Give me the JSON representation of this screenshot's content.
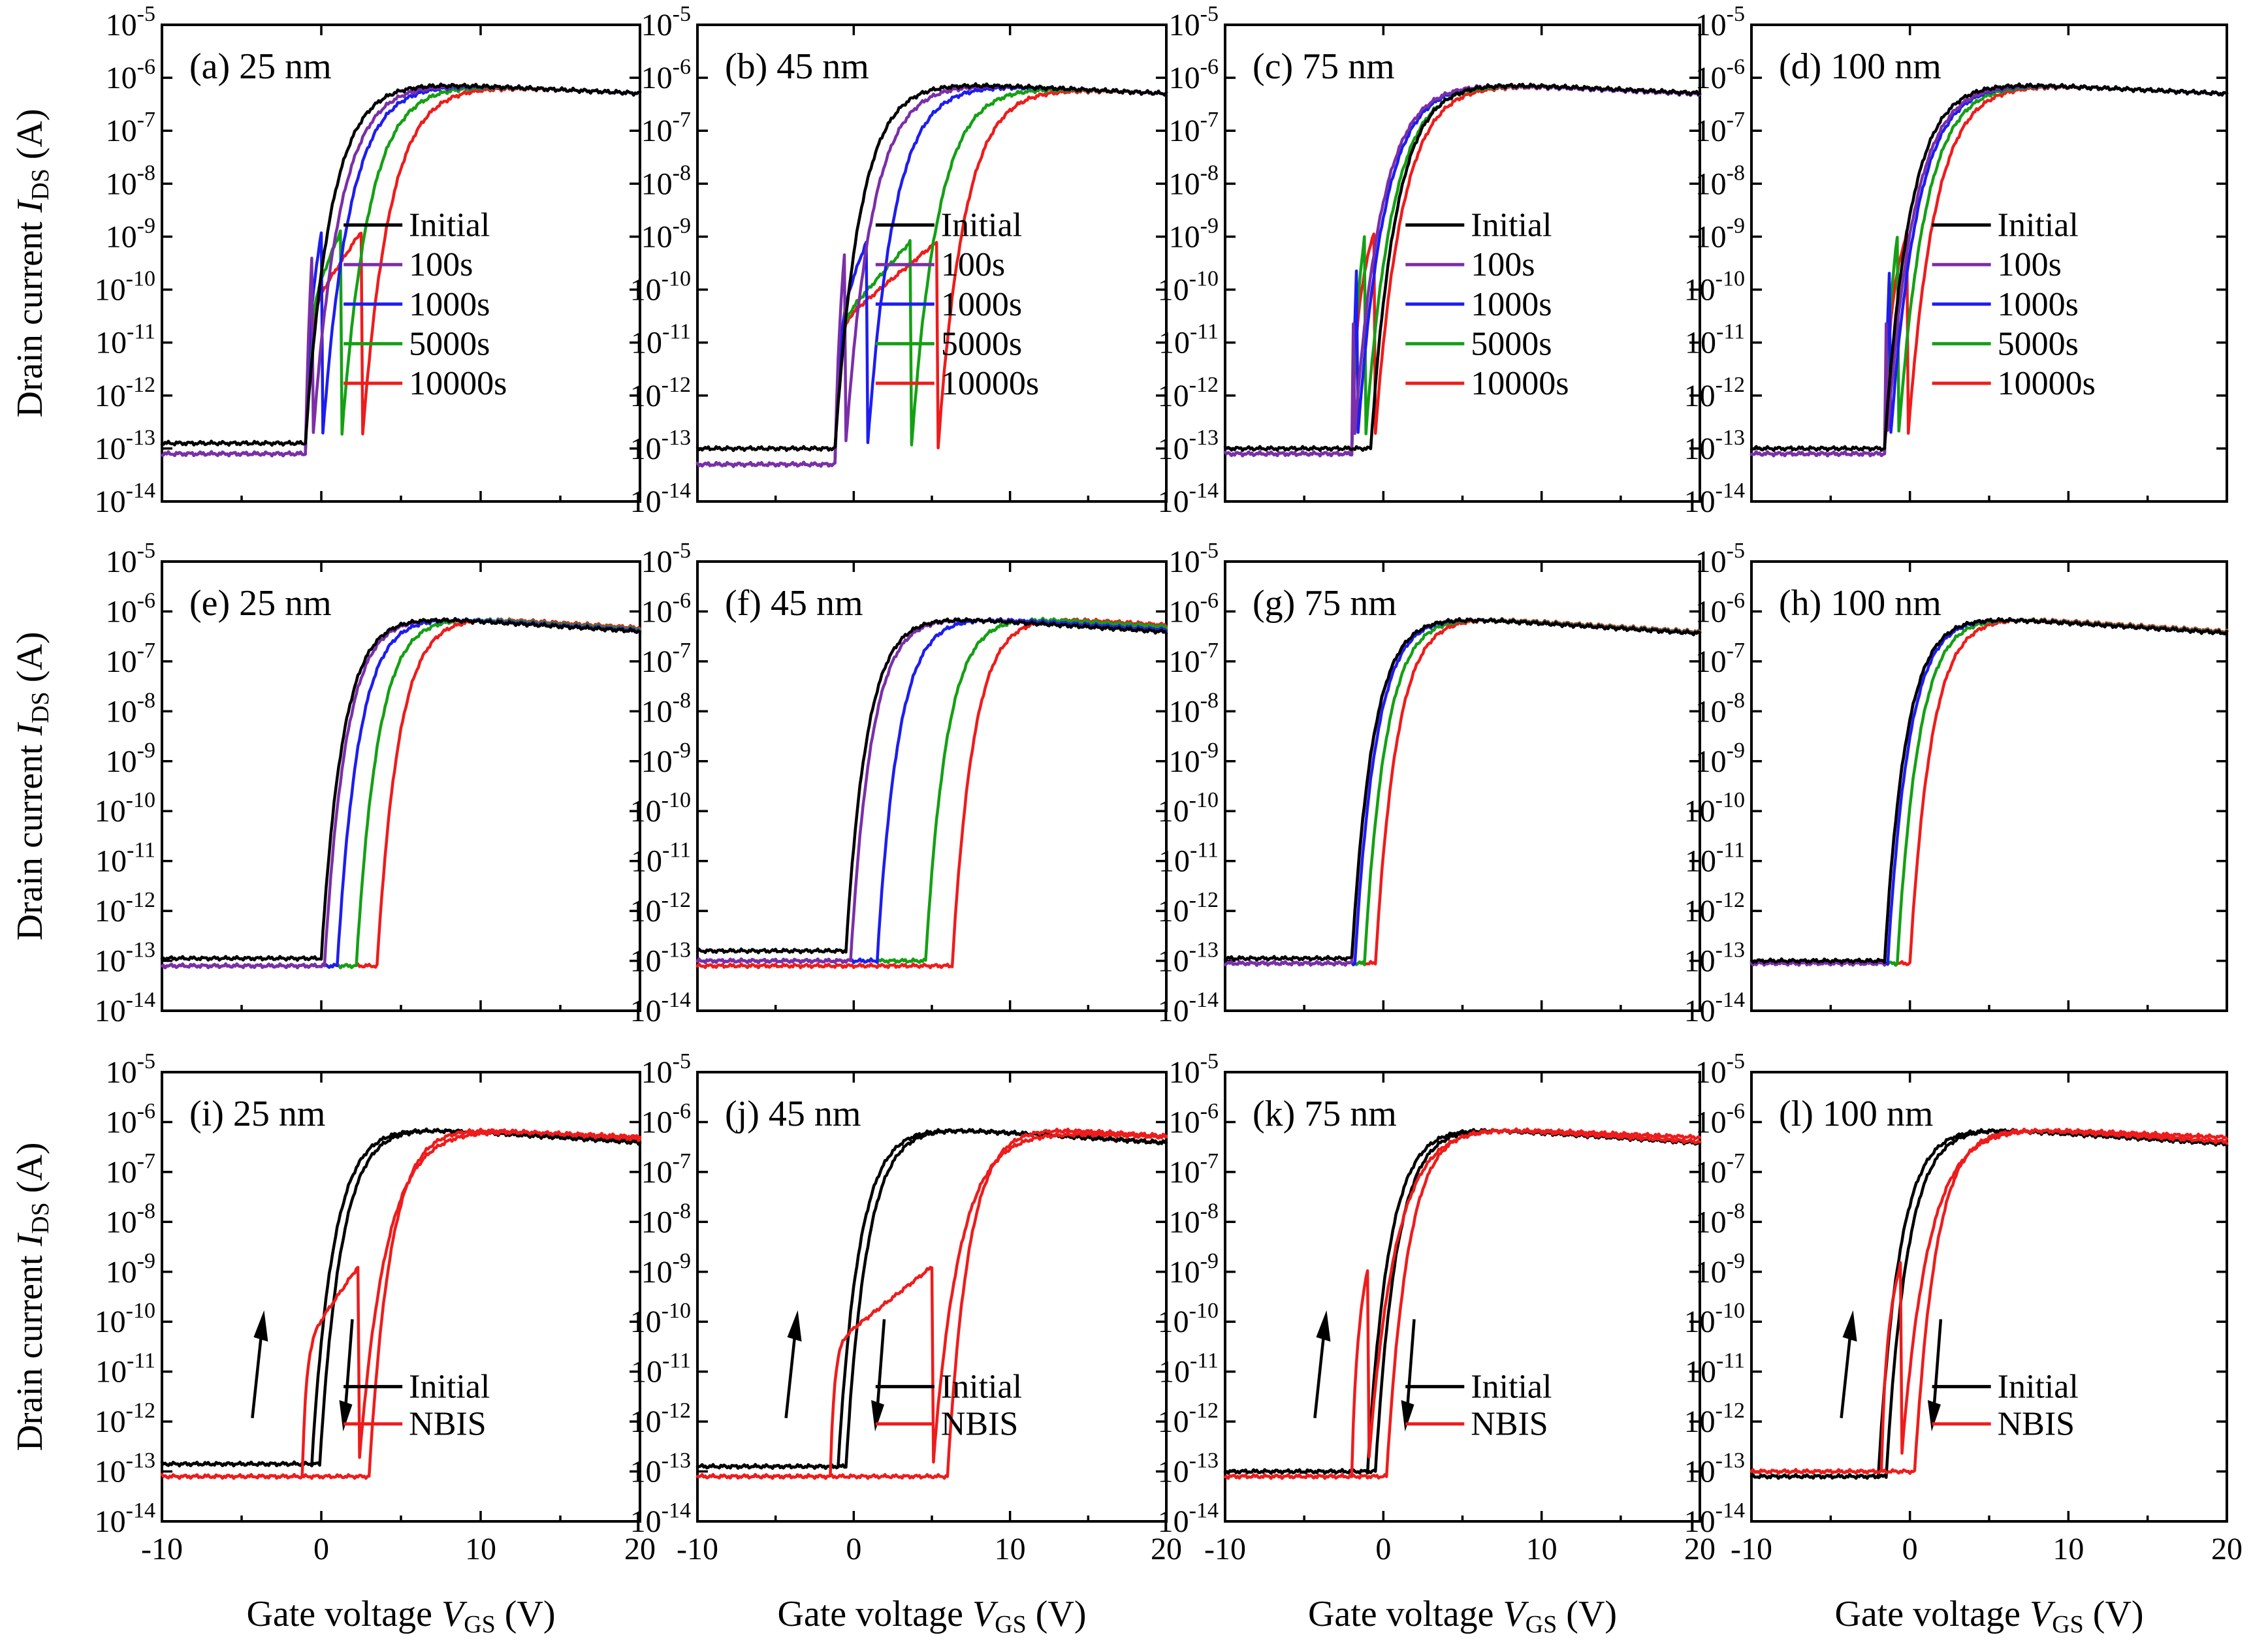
{
  "figure": {
    "xlabel": "Gate voltage",
    "xlabel_var": "V",
    "xlabel_sub": "GS",
    "xlabel_unit": "(V)",
    "ylabel": "Drain current",
    "ylabel_var": "I",
    "ylabel_sub": "DS",
    "ylabel_unit": "(A)"
  },
  "chart_data": {
    "type": "line",
    "x_range": [
      -10,
      20
    ],
    "x_ticks": [
      "-10",
      "0",
      "10",
      "20"
    ],
    "y_scale": "log",
    "y_range_exp": [
      -14,
      -5
    ],
    "y_tick_labels": [
      {
        "base": "10",
        "exp": "-5"
      },
      {
        "base": "10",
        "exp": "-6"
      },
      {
        "base": "10",
        "exp": "-7"
      },
      {
        "base": "10",
        "exp": "-8"
      },
      {
        "base": "10",
        "exp": "-9"
      },
      {
        "base": "10",
        "exp": "-10"
      },
      {
        "base": "10",
        "exp": "-11"
      },
      {
        "base": "10",
        "exp": "-12"
      },
      {
        "base": "10",
        "exp": "-13"
      },
      {
        "base": "10",
        "exp": "-14"
      }
    ],
    "colors": {
      "Initial": "#000000",
      "100s": "#7b2fa8",
      "1000s": "#1d1df0",
      "5000s": "#14a014",
      "10000s": "#ee1c1c",
      "NBIS": "#ee1c1c"
    },
    "panels": [
      {
        "label": "(a) 25 nm",
        "legend": [
          "Initial",
          "100s",
          "1000s",
          "5000s",
          "10000s"
        ],
        "series": [
          {
            "name": "Initial",
            "von": -1.0,
            "shoulder": 0,
            "off": -12.9
          },
          {
            "name": "100s",
            "von": -1.0,
            "shoulder": 0.4,
            "off": -13.1
          },
          {
            "name": "1000s",
            "von": -1.0,
            "shoulder": 1.0,
            "off": -13.1
          },
          {
            "name": "5000s",
            "von": -1.0,
            "shoulder": 2.2,
            "off": -13.1
          },
          {
            "name": "10000s",
            "von": -1.0,
            "shoulder": 3.5,
            "off": -13.1
          }
        ]
      },
      {
        "label": "(b) 45 nm",
        "legend": [
          "Initial",
          "100s",
          "1000s",
          "5000s",
          "10000s"
        ],
        "series": [
          {
            "name": "Initial",
            "von": -1.2,
            "shoulder": 0,
            "off": -13.0
          },
          {
            "name": "100s",
            "von": -1.2,
            "shoulder": 0.6,
            "off": -13.3
          },
          {
            "name": "1000s",
            "von": -1.2,
            "shoulder": 2.0,
            "off": -13.3
          },
          {
            "name": "5000s",
            "von": -1.2,
            "shoulder": 4.8,
            "off": -13.3
          },
          {
            "name": "10000s",
            "von": -1.2,
            "shoulder": 6.5,
            "off": -13.3
          }
        ]
      },
      {
        "label": "(c) 75 nm",
        "legend": [
          "Initial",
          "100s",
          "1000s",
          "5000s",
          "10000s"
        ],
        "series": [
          {
            "name": "Initial",
            "von": -0.8,
            "shoulder": 0,
            "off": -13.0
          },
          {
            "name": "100s",
            "von": -2.0,
            "shoulder": 0.1,
            "off": -13.1
          },
          {
            "name": "1000s",
            "von": -2.0,
            "shoulder": 0.3,
            "off": -13.1
          },
          {
            "name": "5000s",
            "von": -2.0,
            "shoulder": 0.8,
            "off": -13.1
          },
          {
            "name": "10000s",
            "von": -2.0,
            "shoulder": 1.4,
            "off": -13.1
          }
        ]
      },
      {
        "label": "(d) 100 nm",
        "legend": [
          "Initial",
          "100s",
          "1000s",
          "5000s",
          "10000s"
        ],
        "series": [
          {
            "name": "Initial",
            "von": -1.6,
            "shoulder": 0,
            "off": -13.0
          },
          {
            "name": "100s",
            "von": -1.6,
            "shoulder": 0.1,
            "off": -13.1
          },
          {
            "name": "1000s",
            "von": -1.6,
            "shoulder": 0.3,
            "off": -13.1
          },
          {
            "name": "5000s",
            "von": -1.6,
            "shoulder": 0.8,
            "off": -13.1
          },
          {
            "name": "10000s",
            "von": -1.6,
            "shoulder": 1.4,
            "off": -13.1
          }
        ]
      },
      {
        "label": "(e) 25 nm",
        "legend": [],
        "series": [
          {
            "name": "Initial",
            "von": 0.0,
            "off": -12.95
          },
          {
            "name": "100s",
            "von": 0.2,
            "off": -13.1
          },
          {
            "name": "1000s",
            "von": 1.0,
            "off": -13.1
          },
          {
            "name": "5000s",
            "von": 2.2,
            "off": -13.1
          },
          {
            "name": "10000s",
            "von": 3.5,
            "off": -13.1
          }
        ]
      },
      {
        "label": "(f) 45 nm",
        "legend": [],
        "series": [
          {
            "name": "Initial",
            "von": -0.5,
            "off": -12.8
          },
          {
            "name": "100s",
            "von": -0.2,
            "off": -13.0
          },
          {
            "name": "1000s",
            "von": 1.5,
            "off": -13.0
          },
          {
            "name": "5000s",
            "von": 4.6,
            "off": -13.0
          },
          {
            "name": "10000s",
            "von": 6.3,
            "off": -13.1
          }
        ]
      },
      {
        "label": "(g) 75 nm",
        "legend": [],
        "series": [
          {
            "name": "Initial",
            "von": -2.0,
            "off": -12.95
          },
          {
            "name": "100s",
            "von": -2.0,
            "off": -13.05
          },
          {
            "name": "1000s",
            "von": -1.8,
            "off": -13.05
          },
          {
            "name": "5000s",
            "von": -1.2,
            "off": -13.05
          },
          {
            "name": "10000s",
            "von": -0.5,
            "off": -13.05
          }
        ]
      },
      {
        "label": "(h) 100 nm",
        "legend": [],
        "series": [
          {
            "name": "Initial",
            "von": -1.6,
            "off": -13.0
          },
          {
            "name": "100s",
            "von": -1.6,
            "off": -13.05
          },
          {
            "name": "1000s",
            "von": -1.4,
            "off": -13.05
          },
          {
            "name": "5000s",
            "von": -0.8,
            "off": -13.05
          },
          {
            "name": "10000s",
            "von": 0.0,
            "off": -13.05
          }
        ]
      },
      {
        "label": "(i) 25 nm",
        "legend": [
          "Initial",
          "NBIS"
        ],
        "hysteresis": [
          {
            "name": "Initial",
            "fwd_von": -0.6,
            "rev_von": -0.1,
            "off": -12.85
          },
          {
            "name": "NBIS",
            "fwd_von": -1.2,
            "fwd_shoulder": 3.5,
            "rev_von": 3.0,
            "off": -13.1
          }
        ],
        "arrows": [
          "up",
          "down"
        ]
      },
      {
        "label": "(j) 45 nm",
        "legend": [
          "Initial",
          "NBIS"
        ],
        "hysteresis": [
          {
            "name": "Initial",
            "fwd_von": -1.0,
            "rev_von": -0.5,
            "off": -12.9
          },
          {
            "name": "NBIS",
            "fwd_von": -1.5,
            "fwd_shoulder": 6.5,
            "rev_von": 6.0,
            "off": -13.1
          }
        ],
        "arrows": [
          "up",
          "down"
        ]
      },
      {
        "label": "(k) 75 nm",
        "legend": [
          "Initial",
          "NBIS"
        ],
        "hysteresis": [
          {
            "name": "Initial",
            "fwd_von": -1.0,
            "rev_von": -0.5,
            "off": -13.0
          },
          {
            "name": "NBIS",
            "fwd_von": -2.0,
            "fwd_shoulder": 1.0,
            "rev_von": 0.2,
            "off": -13.1
          }
        ],
        "arrows": [
          "up",
          "down"
        ]
      },
      {
        "label": "(l) 100 nm",
        "legend": [
          "Initial",
          "NBIS"
        ],
        "hysteresis": [
          {
            "name": "Initial",
            "fwd_von": -2.0,
            "rev_von": -1.5,
            "off": -13.1
          },
          {
            "name": "NBIS",
            "fwd_von": -1.8,
            "fwd_shoulder": 1.2,
            "rev_von": 0.3,
            "off": -13.0
          }
        ],
        "arrows": [
          "up",
          "down"
        ]
      }
    ]
  }
}
